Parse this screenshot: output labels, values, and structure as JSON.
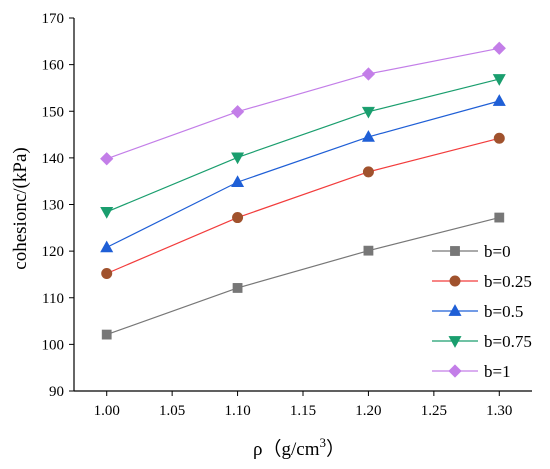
{
  "chart_data": {
    "type": "line",
    "xlabel": "ρ（g/cm",
    "xlabel_sup": "3",
    "xlabel_end": "）",
    "ylabel": "cohesionc/(kPa)",
    "x": [
      1.0,
      1.1,
      1.2,
      1.3
    ],
    "xlim": [
      0.975,
      1.325
    ],
    "ylim": [
      90,
      170
    ],
    "x_ticks": [
      "1.00",
      "1.05",
      "1.10",
      "1.15",
      "1.20",
      "1.25",
      "1.30"
    ],
    "y_ticks": [
      "90",
      "100",
      "110",
      "120",
      "130",
      "140",
      "150",
      "160",
      "170"
    ],
    "grid": false,
    "legend_position": "bottom-right",
    "series": [
      {
        "name": "b=0",
        "values": [
          102.1,
          112.1,
          120.1,
          127.2
        ],
        "color": "#777777",
        "marker": "square"
      },
      {
        "name": "b=0.25",
        "values": [
          115.2,
          127.2,
          137.0,
          144.2
        ],
        "color": "#f23c3c",
        "marker_color": "#a0522d",
        "marker": "circle"
      },
      {
        "name": "b=0.5",
        "values": [
          120.8,
          134.8,
          144.5,
          152.2
        ],
        "color": "#1f5fd6",
        "marker": "triangle-up"
      },
      {
        "name": "b=0.75",
        "values": [
          128.4,
          140.1,
          149.9,
          156.9
        ],
        "color": "#1a9e6e",
        "marker": "triangle-down"
      },
      {
        "name": "b=1",
        "values": [
          139.8,
          149.9,
          158.0,
          163.5
        ],
        "color": "#c37ee8",
        "marker": "diamond"
      }
    ]
  }
}
